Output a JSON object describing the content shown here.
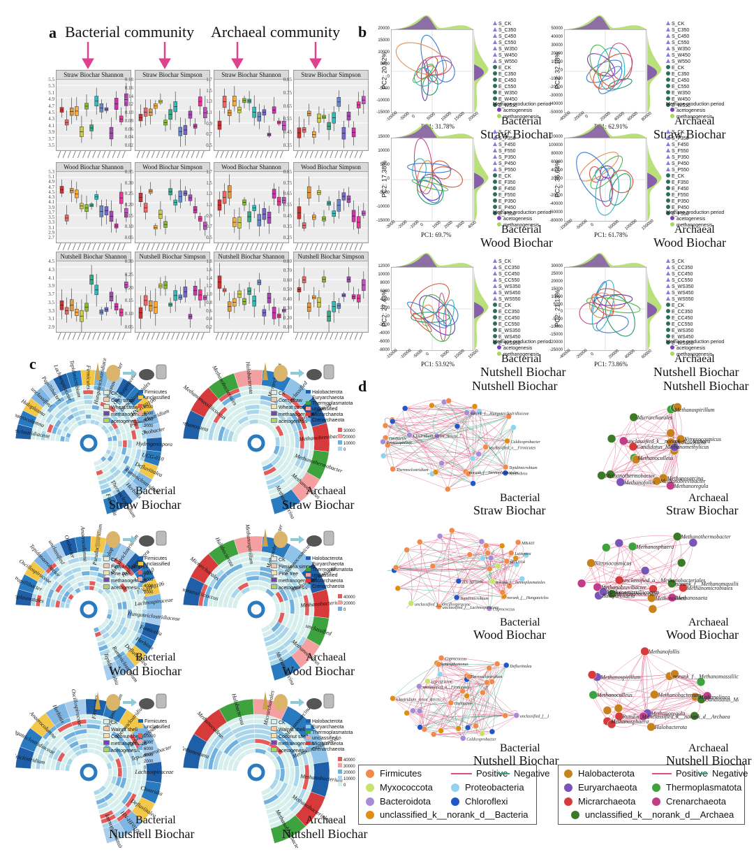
{
  "panel_a": {
    "letter": "a",
    "headers": [
      "Bacterial community",
      "Archaeal community"
    ],
    "rows": [
      {
        "titles": [
          "Straw Biochar Shannon",
          "Straw Biochar Simpson",
          "Straw Biochar Shannon",
          "Straw Biochar Simpson"
        ],
        "yticks": [
          [
            "5.5",
            "5.3",
            "5.1",
            "4.9",
            "4.7",
            "4.5",
            "4.3",
            "4.1",
            "3.9",
            "3.7",
            "3.5"
          ],
          [
            "0.18",
            "0.16",
            "0.14",
            "0.12",
            "0.10",
            "0.08",
            "0.06",
            "0.04",
            "0.02"
          ],
          [
            "1.7",
            "1.5",
            "1.3",
            "1.1",
            "0.9",
            "0.7",
            "0.5"
          ],
          [
            "0.85",
            "0.75",
            "0.65",
            "0.55",
            "0.45",
            "0.35"
          ]
        ]
      },
      {
        "titles": [
          "Wood Biochar Shannon",
          "Wood Biochar Simpson",
          "Wood Biochar Shannon",
          "Wood Biochar Simpson"
        ],
        "yticks": [
          [
            "5.3",
            "5.1",
            "4.9",
            "4.7",
            "4.5",
            "4.3",
            "4.1",
            "3.9",
            "3.7",
            "3.5",
            "3.3",
            "3.1",
            "2.9",
            "2.7"
          ],
          [
            "0.35",
            "0.30",
            "0.25",
            "0.20",
            "0.15",
            "0.10",
            "0.05"
          ],
          [
            "1.7",
            "1.5",
            "1.3",
            "1.1",
            "0.9",
            "0.7",
            "0.5"
          ],
          [
            "0.85",
            "0.75",
            "0.65",
            "0.55",
            "0.45",
            "0.35",
            "0.25"
          ]
        ]
      },
      {
        "titles": [
          "Nutshell Biochar Shannon",
          "Nutshell Biochar Simpson",
          "Nutshell Biochar Shannon",
          "Nutshell Biochar Simpson"
        ],
        "yticks": [
          [
            "4.5",
            "4.3",
            "4.1",
            "3.9",
            "3.7",
            "3.5",
            "3.3",
            "3.1",
            "2.9"
          ],
          [
            "0.30",
            "0.25",
            "0.20",
            "0.15",
            "0.10",
            "0.05"
          ],
          [
            "1.8",
            "1.6",
            "1.4",
            "1.2",
            "1.0",
            "0.8",
            "0.6",
            "0.4",
            "0.2"
          ],
          [
            "0.80",
            "0.70",
            "0.60",
            "0.50",
            "0.40",
            "0.30",
            "0.20",
            "0.10"
          ]
        ]
      }
    ]
  },
  "panel_b": {
    "letter": "b",
    "plots": [
      {
        "pc2": "PC2: 20.52%",
        "pc1": "PC1: 31.78%",
        "cap1": "Bacterial",
        "cap2": "Straw Biochar",
        "legend": [
          "S_CK",
          "S_C350",
          "S_C450",
          "S_C550",
          "S_W350",
          "S_W450",
          "S_W550",
          "E_CK",
          "E_C350",
          "E_C450",
          "E_C550",
          "E_W350",
          "E_W450",
          "E_W550"
        ],
        "yticks": [
          "20000",
          "15000",
          "10000",
          "5000",
          "0",
          "-5000",
          "-10000",
          "-15000"
        ],
        "xticks": [
          "-10000",
          "-5000",
          "0",
          "5000",
          "10000",
          "15000",
          "20000"
        ]
      },
      {
        "pc2": "PC2: 32.18%",
        "pc1": "PC1: 62.91%",
        "cap1": "Archaeal",
        "cap2": "Straw Biochar",
        "legend": [
          "S_CK",
          "S_C350",
          "S_C450",
          "S_C550",
          "S_W350",
          "S_W450",
          "S_W550",
          "E_CK",
          "E_C350",
          "E_C450",
          "E_C550",
          "E_W350",
          "E_W450",
          "E_W550"
        ],
        "yticks": [
          "50000",
          "40000",
          "30000",
          "20000",
          "10000",
          "0",
          "-10000",
          "-20000",
          "-30000",
          "-40000",
          "-50000"
        ],
        "xticks": [
          "-40000",
          "-20000",
          "0",
          "20000",
          "40000",
          "60000",
          "80000"
        ]
      },
      {
        "pc2": "PC2: 17.38%",
        "pc1": "PC1: 69.7%",
        "cap1": "Bacterial",
        "cap2": "Wood Biochar",
        "legend": [
          "S_CK",
          "S_F350",
          "S_F450",
          "S_F550",
          "S_P350",
          "S_P450",
          "S_P550",
          "E_CK",
          "E_F350",
          "E_F450",
          "E_F550",
          "E_P350",
          "E_P450",
          "E_P550"
        ],
        "yticks": [
          "15000",
          "10000",
          "5000",
          "0",
          "-5000",
          "-10000",
          "-15000"
        ],
        "xticks": [
          "-3000",
          "-2000",
          "-1000",
          "0",
          "1000",
          "2000",
          "3000",
          "4000"
        ]
      },
      {
        "pc2": "PC2: 36.64%",
        "pc1": "PC1: 61.78%",
        "cap1": "Archaeal",
        "cap2": "Wood Biochar",
        "legend": [
          "S_CK",
          "S_F350",
          "S_F450",
          "S_F550",
          "S_P350",
          "S_P450",
          "S_P550",
          "E_CK",
          "E_F350",
          "E_F450",
          "E_F550",
          "E_P350",
          "E_P450",
          "E_P550"
        ],
        "yticks": [
          "120000",
          "100000",
          "80000",
          "60000",
          "40000",
          "20000",
          "0",
          "-20000",
          "-40000",
          "-60000",
          "-80000"
        ],
        "xticks": [
          "-100000",
          "-50000",
          "0",
          "50000",
          "100000",
          "150000"
        ]
      },
      {
        "pc2": "PC2: 27.43%",
        "pc1": "PC1: 53.92%",
        "cap1": "Bacterial",
        "cap2": "Nutshell Biochar",
        "legend": [
          "S_CK",
          "S_CC350",
          "S_CC450",
          "S_CC550",
          "S_WS350",
          "S_WS450",
          "S_WS550",
          "E_CK",
          "E_CC350",
          "E_CC450",
          "E_CC550",
          "E_WS350",
          "E_WS450",
          "E_WS550"
        ],
        "yticks": [
          "12000",
          "10000",
          "8000",
          "6000",
          "4000",
          "2000",
          "0",
          "-2000",
          "-4000",
          "-6000",
          "-8000"
        ],
        "xticks": [
          "-15000",
          "-10000",
          "-5000",
          "0",
          "5000",
          "10000",
          "15000"
        ]
      },
      {
        "pc2": "PC2: 21.13%",
        "pc1": "PC1: 73.86%",
        "cap1": "Archaeal",
        "cap2": "Nutshell Biochar",
        "legend": [
          "S_CK",
          "S_CC350",
          "S_CC450",
          "S_CC550",
          "S_WS350",
          "S_WS450",
          "S_WS550",
          "E_CK",
          "E_CC350",
          "E_CC450",
          "E_CC550",
          "E_WS350",
          "E_WS450",
          "E_WS550"
        ],
        "yticks": [
          "30000",
          "25000",
          "20000",
          "15000",
          "10000",
          "5000",
          "0",
          "-5000",
          "-10000",
          "-15000",
          "-20000",
          "-25000"
        ],
        "xticks": [
          "-40000",
          "-20000",
          "0",
          "20000",
          "40000",
          "60000"
        ]
      }
    ],
    "period_title": "Methane production period",
    "period_items": [
      "acetogenesis",
      "methanogenesis"
    ]
  },
  "panel_c": {
    "letter": "c",
    "wheels": [
      {
        "cap1": "Bacterial",
        "cap2": "Straw Biochar",
        "legend": [
          "CK",
          "Corn straw",
          "Wheat straw",
          "methanogenesis",
          "acetogenesis"
        ],
        "phyla": [
          "Firmicutes",
          "unclassified"
        ],
        "scale": [
          "8000",
          "6000",
          "4000",
          "2000",
          "0"
        ],
        "taxa": [
          "Hungateiclostridiaceae",
          "Anaerocolumna",
          "Haloplasma",
          "unclassified",
          "Papillibacter",
          "Lachnospiraceae",
          "Tepidimicrobium",
          "Firmicutes",
          "Hungateiclostridiaceae",
          "Tepidanaerobacter",
          "Oscillospiraceae",
          "Izemoplasmatales",
          "HN-HF0106",
          "Pseudoclostridium",
          "Oxobacter",
          "Hydrogenispora",
          "UCG-010",
          "Defluviitalea",
          "Ruminiclostridium",
          "Herbinix",
          "Thermoclostridium",
          "Fonticella"
        ]
      },
      {
        "cap1": "Archaeal",
        "cap2": "Straw Biochar",
        "legend": [
          "CK",
          "Corn straw",
          "Wheat straw",
          "methanogenesis",
          "acetogenesis"
        ],
        "phyla": [
          "Halobacterota",
          "Euryarchaeota",
          "Thermoplasmatota",
          "unclassified",
          "Micrarchaeota",
          "Crenarchaeota"
        ],
        "scale": [
          "30000",
          "20000",
          "10000",
          "0"
        ],
        "taxa": [
          "Methanosaeta",
          "Methanomassiliicoccus",
          "Methanobacteriales",
          "Halobacterota",
          "Micrarchaeales",
          "unclassified",
          "Nitrosocosmicus",
          "Methanobrevibacter",
          "Methanothermobacter",
          "Methanoculleus",
          "Methanosarcina"
        ]
      },
      {
        "cap1": "Bacterial",
        "cap2": "Wood Biochar",
        "legend": [
          "CK",
          "Firmiana simplex",
          "Pine tree",
          "methanogenesis",
          "acetogenesis"
        ],
        "phyla": [
          "Firmicutes",
          "unclassified"
        ],
        "scale": [
          "8000",
          "6000",
          "4000",
          "2000",
          "0"
        ],
        "taxa": [
          "Izemoplasmatales",
          "Papillibacter",
          "Oscillospiraceae",
          "Tepidanaerobacter",
          "unclassified",
          "Oxobacter",
          "Anaerocolumna",
          "Pseudoclostridium",
          "Haloplasma",
          "Hungateiclostridium",
          "Hydrogenispora",
          "UCG-010",
          "HN-HF0106",
          "Lachnospiraceae",
          "Hungateiclostridiaceae",
          "Fonticella",
          "Herbinix",
          "Defluviitalea",
          "Ruminiclostridium",
          "Tepidimicrobium"
        ]
      },
      {
        "cap1": "Archaeal",
        "cap2": "Wood Biochar",
        "legend": [
          "CK",
          "Firmiana simplex",
          "Pine tree",
          "methanogenesis",
          "acetogenesis"
        ],
        "phyla": [
          "Halobacterota",
          "Euryarchaeota",
          "Thermoplasmatota",
          "unclassified",
          "Micrarchaeota",
          "Crenarchaeota"
        ],
        "scale": [
          "40000",
          "20000",
          "0"
        ],
        "taxa": [
          "Methanomassiliicoccus",
          "Micrarchaeales",
          "Halobacterota",
          "Methanospirillum",
          "Methanobrevibacter",
          "Nitrosocosmicus",
          "Methanothermobacter",
          "Methanobacterium",
          "unclassified",
          "Methanoculleus",
          "Methanosarcina"
        ]
      },
      {
        "cap1": "Bacterial",
        "cap2": "Nutshell Biochar",
        "legend": [
          "CK",
          "Walnut shell",
          "Coconut shell",
          "methanogenesis",
          "acetogenesis"
        ],
        "phyla": [
          "Firmicutes",
          "unclassified"
        ],
        "scale": [
          "10000",
          "8000",
          "6000",
          "4000",
          "2000",
          "0"
        ],
        "taxa": [
          "Ruminiclostridium",
          "Hungateiclostridiaceae",
          "Anaerocolumna",
          "Herbinix",
          "Oscillospiraceae",
          "Firmicutes",
          "Tepidimicrobium",
          "Thermoclostridium",
          "Hydrogenispora",
          "Tepidanaerobacter",
          "Lachnospiraceae",
          "Clostridia",
          "Defluviitalea",
          "HN-HF0106",
          "Izemoplasmatales"
        ]
      },
      {
        "cap1": "Archaeal",
        "cap2": "Nutshell Biochar",
        "legend": [
          "CK",
          "Walnut shell",
          "Coconut shell",
          "methanogenesis",
          "acetogenesis"
        ],
        "phyla": [
          "Halobacterota",
          "Euryarchaeota",
          "Thermoplasmatota",
          "unclassified",
          "Micrarchaeota",
          "Crenarchaeota"
        ],
        "scale": [
          "40000",
          "30000",
          "20000",
          "10000",
          "0"
        ],
        "taxa": [
          "Methanosaeta",
          "Methanoculleus",
          "Halobacterota",
          "Micrarchaeales",
          "Methanosarcina",
          "Methanomassiliicoccus",
          "Methanobacterium",
          "Methanobacteriales",
          "Methanobrevibacter"
        ]
      }
    ]
  },
  "panel_d": {
    "letter": "d",
    "networks": [
      {
        "cap1": "Nutshell Biochar",
        "cap2": "Bacterial",
        "cap3": "Straw Biochar"
      },
      {
        "cap1": "Nutshell Biochar",
        "cap2": "Archaeal",
        "cap3": "Straw Biochar"
      },
      {
        "cap2": "Bacterial",
        "cap3": "Wood Biochar"
      },
      {
        "cap2": "Archaeal",
        "cap3": "Wood Biochar"
      },
      {
        "cap2": "Bacterial",
        "cap3": "Nutshell Biochar"
      },
      {
        "cap2": "Archaeal",
        "cap3": "Nutshell Biochar"
      }
    ],
    "bact_nodes": [
      "Thermoclostridium",
      "MBA03",
      "Tepidimicrobium",
      "Oxobacter",
      "unclassified_f__Lachnospiraceae",
      "norank_f__Hungateiclostridiaceae",
      "Clostridium_sensu_stricto_7",
      "Coprococcus",
      "norank_f__Izemoplasmatales",
      "unclassified_o__Firmicutes",
      "HN-HF0106",
      "unclassified_f__Oscillospiraceae",
      "Caldicoprobacter",
      "Syntrophomonas",
      "Lutispora",
      "Acetivibrio",
      "Defluviitalea",
      "DTU014",
      "Proteiniphilum"
    ],
    "arch_nodes": [
      "Methanosarcina",
      "Methanoculleus",
      "Methanomassiliicoccus",
      "Methanosaeta",
      "Methanospirillum",
      "Methanobacterium",
      "Methanobrevibacter",
      "Methanofollis",
      "Methanolinea",
      "Methanothermobacter",
      "Methanoregula",
      "Methanosphaera",
      "Nitrosocosmicus",
      "Candidatus_Methanomethylicus",
      "norank_f__Methanomassiliicoccaceae",
      "unclassified_o__Methanobacteriales",
      "unclassified_k__norank_d__Archaea",
      "RumEn_M2",
      "Bathyarchaeia",
      "Micrarchaeales",
      "Halobacterota",
      "Methanomicrobiales"
    ],
    "legend_bact": {
      "items": [
        "Firmicutes",
        "Myxococcota",
        "Bacteroidota",
        "unclassified_k__norank_d__Bacteria",
        "Proteobacteria",
        "Chloroflexi"
      ],
      "pos": "Positive",
      "neg": "Negative"
    },
    "legend_arch": {
      "items": [
        "Halobacterota",
        "Euryarchaeota",
        "Micrarchaeota",
        "unclassified_k__norank_d__Archaea",
        "Thermoplasmatota",
        "Crenarchaeota"
      ],
      "pos": "Positive",
      "neg": "Negative"
    }
  },
  "colors": {
    "pink_arrow": "#e0418f",
    "acetogenesis": "#7b3fb8",
    "methanogenesis": "#a8d85a",
    "firmicutes": "#f08a4b",
    "myxococcota": "#c6e36a",
    "bacteroidota": "#a78bd9",
    "unclassified_bact": "#e08e12",
    "proteobacteria": "#8fd3f0",
    "chloroflexi": "#2157c9",
    "halobacterota": "#c7821e",
    "euryarchaeota": "#7a55b8",
    "micrarchaeota": "#d63a3a",
    "unclassified_arch": "#3d7a28",
    "thermoplasmatota": "#3ea33e",
    "crenarchaeota": "#c13d8a",
    "positive": "#e0507a",
    "negative": "#2ea27a"
  }
}
